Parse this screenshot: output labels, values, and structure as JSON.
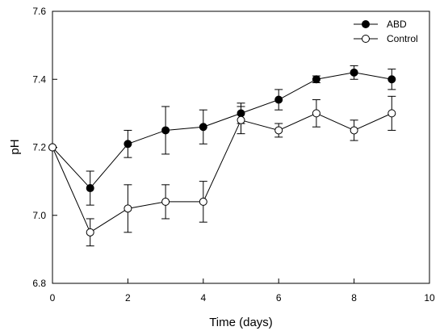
{
  "chart_data": {
    "type": "line",
    "title": "",
    "xlabel": "Time (days)",
    "ylabel": "pH",
    "xlim": [
      0,
      10
    ],
    "ylim": [
      6.8,
      7.6
    ],
    "xticks": [
      0,
      2,
      4,
      6,
      8,
      10
    ],
    "yticks": [
      6.8,
      7.0,
      7.2,
      7.4,
      7.6
    ],
    "xtick_labels": [
      "0",
      "2",
      "4",
      "6",
      "8",
      "10"
    ],
    "ytick_labels": [
      "6.8",
      "7.0",
      "7.2",
      "7.4",
      "7.6"
    ],
    "grid": false,
    "legend_position": "top-right",
    "series": [
      {
        "name": "ABD",
        "marker": "filled-circle",
        "color": "#000000",
        "x": [
          0,
          1,
          2,
          3,
          4,
          5,
          6,
          7,
          8,
          9
        ],
        "y": [
          7.2,
          7.08,
          7.21,
          7.25,
          7.26,
          7.3,
          7.34,
          7.4,
          7.42,
          7.4
        ],
        "err": [
          0,
          0.05,
          0.04,
          0.07,
          0.05,
          0.03,
          0.03,
          0.01,
          0.02,
          0.03
        ]
      },
      {
        "name": "Control",
        "marker": "open-circle",
        "color": "#000000",
        "x": [
          0,
          1,
          2,
          3,
          4,
          5,
          6,
          7,
          8,
          9
        ],
        "y": [
          7.2,
          6.95,
          7.02,
          7.04,
          7.04,
          7.28,
          7.25,
          7.3,
          7.25,
          7.3
        ],
        "err": [
          0,
          0.04,
          0.07,
          0.05,
          0.06,
          0.04,
          0.02,
          0.04,
          0.03,
          0.05
        ]
      }
    ]
  }
}
